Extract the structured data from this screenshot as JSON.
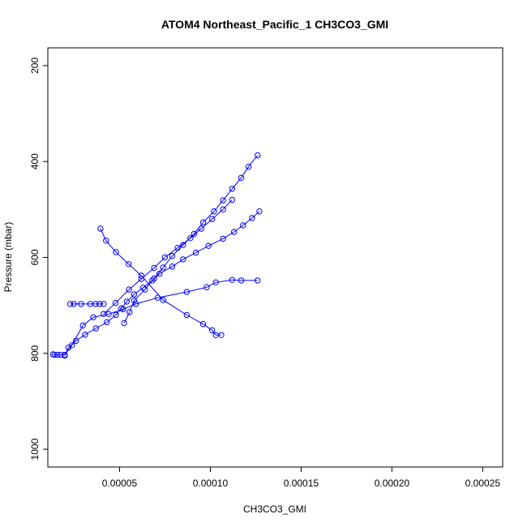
{
  "chart_data": {
    "type": "line",
    "title": "ATOM4 Northeast_Pacific_1 CH3CO3_GMI",
    "xlabel": "CH3CO3_GMI",
    "ylabel": "Pressure (mbar)",
    "xlim": [
      1.05e-05,
      0.000261
    ],
    "ylim": [
      1037,
      163
    ],
    "y_reversed": true,
    "x_ticks": [
      "0.00005",
      "0.00010",
      "0.00015",
      "0.00020",
      "0.00025"
    ],
    "x_tick_values": [
      5e-05,
      0.0001,
      0.00015,
      0.0002,
      0.00025
    ],
    "y_ticks": [
      "200",
      "400",
      "600",
      "800",
      "1000"
    ],
    "y_tick_values": [
      200,
      400,
      600,
      800,
      1000
    ],
    "series_color": "#0000ff",
    "marker": "open-circle",
    "grid": false,
    "legend": "none",
    "series": [
      {
        "x": [
          1.33e-05,
          1.42e-05,
          1.58e-05,
          1.75e-05,
          1.98e-05,
          2.38e-05,
          2.98e-05,
          3.55e-05,
          4.4e-05,
          5.2e-05,
          5.9e-05,
          7.1e-05,
          8.7e-05,
          9.8e-05,
          0.000103,
          0.000112,
          0.000117,
          0.000126
        ],
        "y": [
          802,
          803,
          803,
          803,
          803,
          783,
          742,
          725,
          718,
          708,
          697,
          684,
          672,
          662,
          652,
          647,
          648,
          648
        ]
      },
      {
        "x": [
          1.98e-05,
          2.18e-05,
          2.6e-05,
          3.1e-05,
          3.7e-05,
          4.3e-05,
          4.8e-05,
          5.1e-05,
          5.4e-05,
          5.8e-05,
          6.3e-05,
          6.8e-05,
          7.2e-05,
          7.9e-05,
          8.5e-05,
          9.2e-05,
          9.9e-05,
          0.000107,
          0.000113,
          0.000118,
          0.000123,
          0.000127
        ],
        "y": [
          805,
          788,
          774,
          761,
          748,
          735,
          720,
          706,
          692,
          677,
          663,
          648,
          634,
          619,
          604,
          590,
          576,
          561,
          547,
          533,
          518,
          504
        ]
      },
      {
        "x": [
          2.28e-05,
          2.48e-05,
          2.88e-05,
          3.38e-05,
          3.68e-05,
          3.9e-05,
          4.12e-05
        ],
        "y": [
          697,
          697,
          697,
          697,
          697,
          697,
          697
        ]
      },
      {
        "x": [
          3.95e-05,
          4.25e-05,
          4.8e-05,
          5.5e-05,
          6.2e-05,
          7.4e-05,
          8.7e-05,
          9.6e-05,
          0.000101,
          0.000103,
          0.000106
        ],
        "y": [
          540,
          565,
          589,
          614,
          638,
          689,
          720,
          739,
          752,
          762,
          762
        ]
      },
      {
        "x": [
          4.12e-05,
          4.78e-05,
          5.52e-05,
          6.2e-05,
          6.9e-05,
          7.5e-05,
          8.2e-05,
          8.9e-05,
          9.5e-05,
          0.000101,
          0.000107,
          0.000112
        ],
        "y": [
          718,
          695,
          667,
          645,
          622,
          600,
          580,
          560,
          540,
          520,
          500,
          480
        ]
      },
      {
        "x": [
          5.25e-05,
          5.55e-05,
          5.8e-05,
          6.4e-05,
          6.9e-05,
          7.4e-05,
          7.9e-05,
          8.5e-05,
          9.1e-05,
          9.6e-05,
          0.000102,
          0.000107,
          0.000112,
          0.000117,
          0.000121,
          0.000126
        ],
        "y": [
          737,
          714,
          690,
          667,
          644,
          621,
          597,
          574,
          551,
          527,
          504,
          481,
          457,
          434,
          411,
          387
        ]
      }
    ]
  }
}
